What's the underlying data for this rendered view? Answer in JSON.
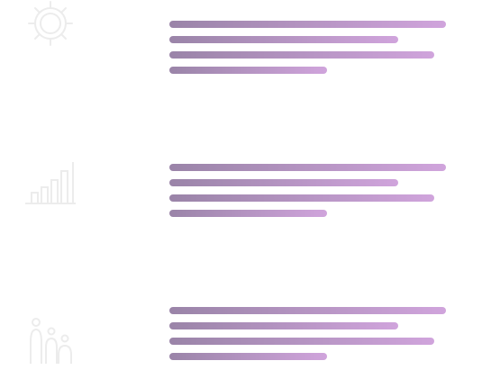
{
  "theme": {
    "gradient_start": "#9a84a8",
    "gradient_end": "#d0a4dc",
    "icon_color": "#ececec"
  },
  "rows": [
    {
      "icon": "gear-icon"
    },
    {
      "icon": "bar-chart-icon"
    },
    {
      "icon": "family-icon"
    }
  ]
}
